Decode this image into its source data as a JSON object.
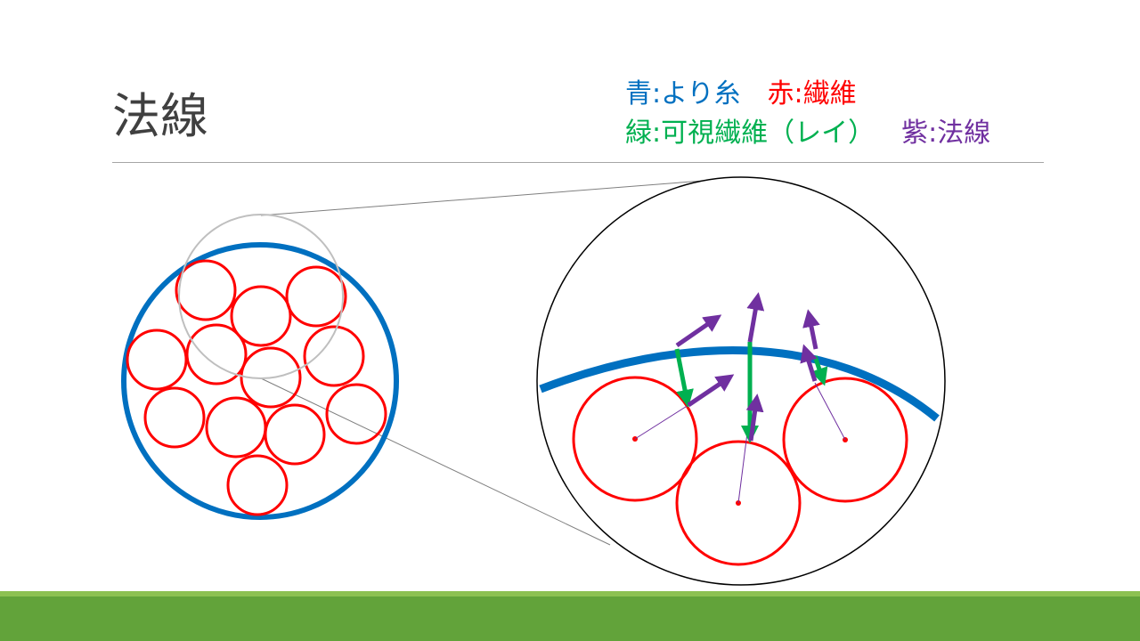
{
  "slide": {
    "title": "法線"
  },
  "legend": {
    "blue": {
      "key": "青",
      "value": "より糸",
      "color": "#0070c0"
    },
    "red": {
      "key": "赤",
      "value": "繊維",
      "color": "#ff0000"
    },
    "green": {
      "key": "緑",
      "value": "可視繊維（レイ）",
      "color": "#00b050"
    },
    "purple": {
      "key": "紫",
      "value": "法線",
      "color": "#7030a0"
    },
    "separator": ":"
  },
  "colors": {
    "yarn": "#0070c0",
    "fiber": "#ff0000",
    "visible_fiber": "#00b050",
    "normal": "#7030a0",
    "footer": "#62a33a"
  }
}
